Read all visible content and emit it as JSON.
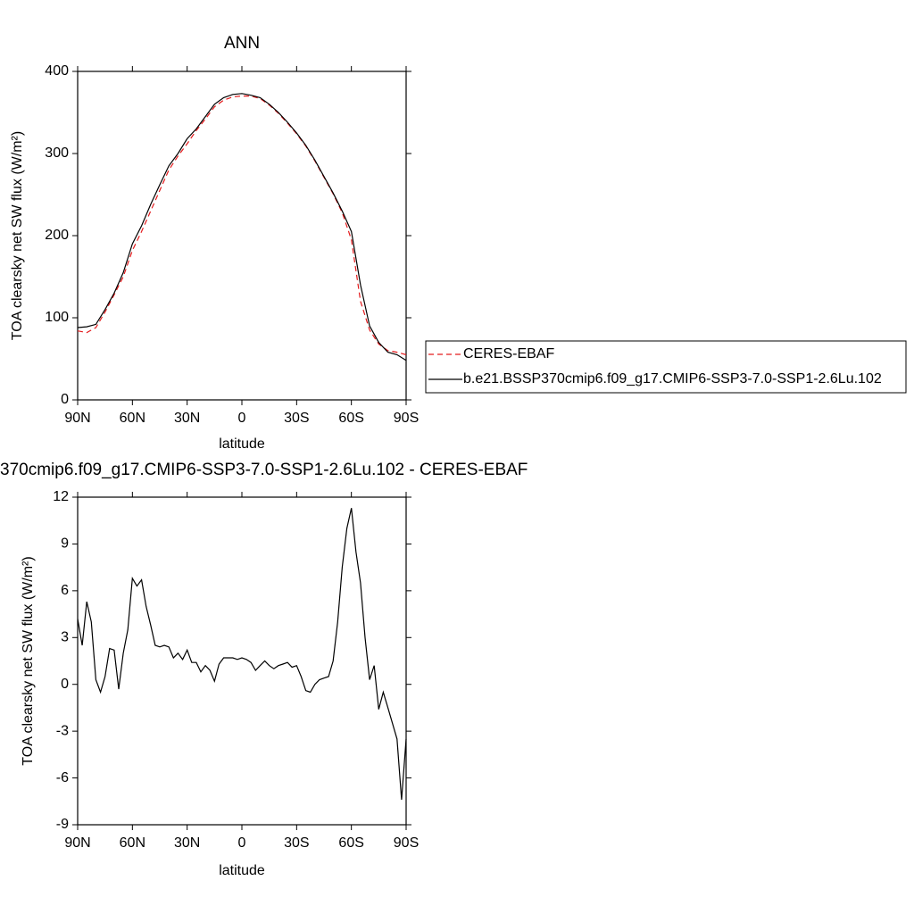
{
  "chart_data": [
    {
      "type": "line",
      "title": "ANN",
      "xlabel": "latitude",
      "ylabel": "TOA clearsky net SW flux (W/m²)",
      "x": [
        90,
        85,
        80,
        75,
        70,
        65,
        60,
        55,
        50,
        45,
        40,
        35,
        30,
        25,
        20,
        15,
        10,
        5,
        0,
        -5,
        -10,
        -15,
        -20,
        -25,
        -30,
        -35,
        -40,
        -45,
        -50,
        -55,
        -60,
        -65,
        -70,
        -75,
        -80,
        -85,
        -90
      ],
      "series": [
        {
          "name": "CERES-EBAF",
          "color": "#e41a1c",
          "dashed": true,
          "values": [
            84,
            82,
            88,
            107,
            128,
            150,
            182,
            205,
            230,
            255,
            280,
            297,
            312,
            328,
            342,
            357,
            365,
            369,
            370,
            370,
            367,
            359,
            349,
            337,
            324,
            309,
            291,
            271,
            251,
            228,
            195,
            120,
            85,
            68,
            60,
            58,
            55
          ]
        },
        {
          "name": "b.e21.BSSP370cmip6.f09_g17.CMIP6-SSP3-7.0-SSP1-2.6Lu.102",
          "color": "#000000",
          "dashed": false,
          "values": [
            88,
            89,
            92,
            110,
            130,
            155,
            190,
            212,
            238,
            262,
            285,
            300,
            318,
            330,
            345,
            360,
            368,
            372,
            373,
            371,
            368,
            360,
            350,
            338,
            325,
            310,
            292,
            272,
            252,
            230,
            205,
            140,
            90,
            70,
            58,
            55,
            48
          ]
        }
      ],
      "xlim": [
        90,
        -90
      ],
      "xticks": [
        {
          "value": 90,
          "label": "90N"
        },
        {
          "value": 60,
          "label": "60N"
        },
        {
          "value": 30,
          "label": "30N"
        },
        0,
        {
          "value": -30,
          "label": "30S"
        },
        {
          "value": -60,
          "label": "60S"
        },
        {
          "value": -90,
          "label": "90S"
        }
      ],
      "ylim": [
        0,
        400
      ],
      "yticks": [
        0,
        100,
        200,
        300,
        400
      ],
      "legend": "right"
    },
    {
      "type": "line",
      "title": "370cmip6.f09_g17.CMIP6-SSP3-7.0-SSP1-2.6Lu.102 - CERES-EBAF",
      "xlabel": "latitude",
      "ylabel": "TOA clearsky net SW flux (W/m²)",
      "x": [
        90,
        87.5,
        85,
        82.5,
        80,
        77.5,
        75,
        72.5,
        70,
        67.5,
        65,
        62.5,
        60,
        57.5,
        55,
        52.5,
        50,
        47.5,
        45,
        42.5,
        40,
        37.5,
        35,
        32.5,
        30,
        27.5,
        25,
        22.5,
        20,
        17.5,
        15,
        12.5,
        10,
        7.5,
        5,
        2.5,
        0,
        -2.5,
        -5,
        -7.5,
        -10,
        -12.5,
        -15,
        -17.5,
        -20,
        -22.5,
        -25,
        -27.5,
        -30,
        -32.5,
        -35,
        -37.5,
        -40,
        -42.5,
        -45,
        -47.5,
        -50,
        -52.5,
        -55,
        -57.5,
        -60,
        -62.5,
        -65,
        -67.5,
        -70,
        -72.5,
        -75,
        -77.5,
        -80,
        -82.5,
        -85,
        -87.5,
        -90
      ],
      "series": [
        {
          "color": "#000000",
          "dashed": false,
          "values": [
            4.2,
            2.5,
            5.3,
            4,
            0.3,
            -0.5,
            0.5,
            2.3,
            2.2,
            -0.3,
            2,
            3.5,
            6.8,
            6.3,
            6.7,
            5,
            3.8,
            2.5,
            2.4,
            2.5,
            2.4,
            1.7,
            2.0,
            1.6,
            2.2,
            1.4,
            1.4,
            0.8,
            1.2,
            0.9,
            0.2,
            1.3,
            1.7,
            1.7,
            1.7,
            1.6,
            1.7,
            1.6,
            1.4,
            0.9,
            1.2,
            1.5,
            1.2,
            1.0,
            1.2,
            1.3,
            1.4,
            1.1,
            1.2,
            0.5,
            -0.4,
            -0.5,
            0,
            0.3,
            0.4,
            0.5,
            1.5,
            4,
            7.5,
            10,
            11.3,
            8.5,
            6.5,
            3,
            0.3,
            1.2,
            -1.6,
            -0.5,
            -1.5,
            -2.5,
            -3.5,
            -7.4,
            -3.5
          ]
        }
      ],
      "xlim": [
        90,
        -90
      ],
      "xticks": [
        {
          "value": 90,
          "label": "90N"
        },
        {
          "value": 60,
          "label": "60N"
        },
        {
          "value": 30,
          "label": "30N"
        },
        0,
        {
          "value": -30,
          "label": "30S"
        },
        {
          "value": -60,
          "label": "60S"
        },
        {
          "value": -90,
          "label": "90S"
        }
      ],
      "ylim": [
        -9,
        12
      ],
      "yticks": [
        -9,
        -6,
        -3,
        0,
        3,
        6,
        9,
        12
      ]
    }
  ]
}
